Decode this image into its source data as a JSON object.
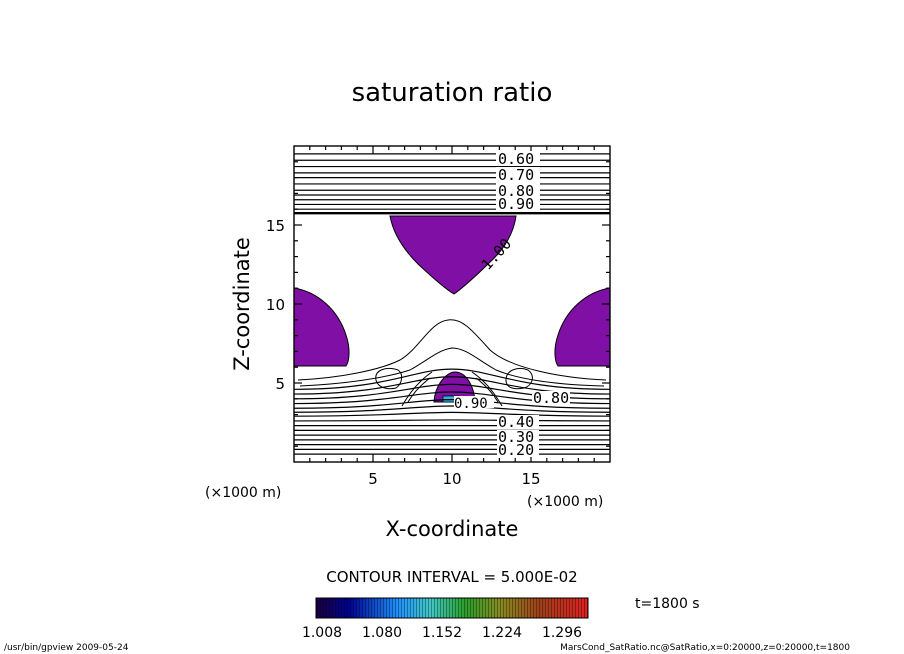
{
  "chart_data": {
    "type": "contour",
    "title": "saturation ratio",
    "xlabel": "X-coordinate",
    "ylabel": "Z-coordinate",
    "x_unit": "(×1000 m)",
    "z_unit": "(×1000 m)",
    "xlim": [
      0,
      20
    ],
    "ylim": [
      0,
      20
    ],
    "x_ticks": [
      "5",
      "10",
      "15"
    ],
    "y_ticks": [
      "5",
      "10",
      "15"
    ],
    "contour_interval_label": "CONTOUR INTERVAL = 5.000E-02",
    "time_label": "t=1800 s",
    "contour_labels": [
      "0.60",
      "0.70",
      "0.80",
      "0.90",
      "1.00",
      "0.80",
      "0.20",
      "0.30",
      "0.40",
      "0.90"
    ],
    "colorbar": {
      "ticks": [
        "1.008",
        "1.080",
        "1.152",
        "1.224",
        "1.296"
      ],
      "range": [
        1.008,
        1.296
      ]
    },
    "shaded_regions": [
      {
        "name": "upper",
        "x_range": [
          6,
          14
        ],
        "z_range": [
          10.7,
          15.6
        ],
        "level": "1.008–1.080"
      },
      {
        "name": "left",
        "x_range": [
          0,
          3.5
        ],
        "z_range": [
          6,
          11
        ],
        "level": "1.008–1.080"
      },
      {
        "name": "right",
        "x_range": [
          16.5,
          20
        ],
        "z_range": [
          6,
          11
        ],
        "level": "1.008–1.080"
      },
      {
        "name": "center",
        "x_range": [
          8.8,
          11.3
        ],
        "z_range": [
          3.7,
          5.6
        ],
        "level": "1.008–1.080"
      }
    ],
    "grid": false
  },
  "footer": {
    "left": "/usr/bin/gpview   2009-05-24",
    "right": "MarsCond_SatRatio.nc@SatRatio,x=0:20000,z=0:20000,t=1800"
  },
  "colors": {
    "shade": "#7f0fa5",
    "shade_high": "#2ab6e8",
    "line": "#000000"
  }
}
